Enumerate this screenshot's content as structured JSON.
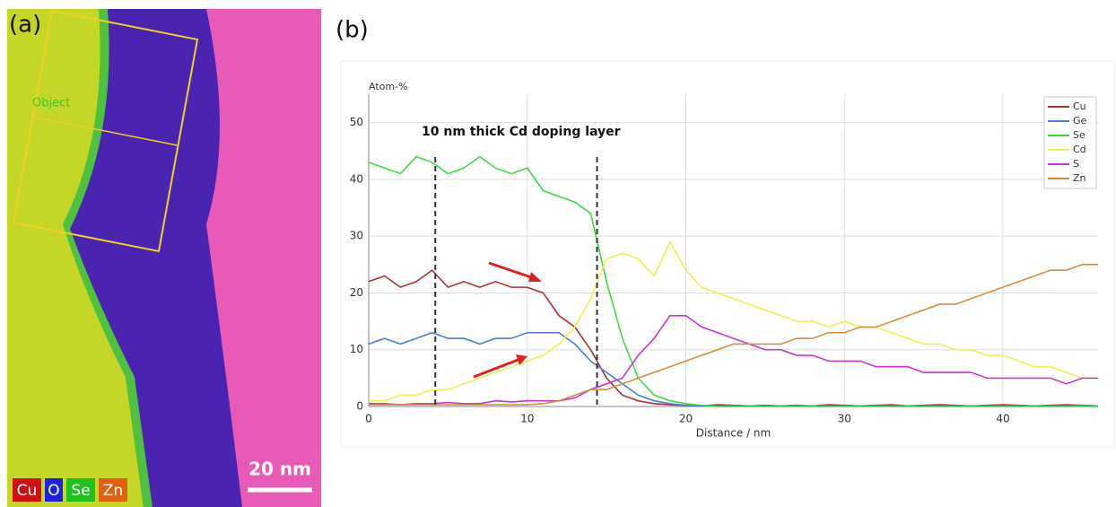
{
  "panel_a": {
    "label": "(a)",
    "object_label": "Object",
    "legend": [
      {
        "name": "Cu",
        "color": "#d01010"
      },
      {
        "name": "O",
        "color": "#2020e0"
      },
      {
        "name": "Se",
        "color": "#20c020"
      },
      {
        "name": "Zn",
        "color": "#e06010"
      }
    ],
    "scale_bar": "20 nm"
  },
  "panel_b_label": "(b)",
  "chart_data": {
    "type": "line",
    "ylabel": "Atom-%",
    "xlabel": "Distance / nm",
    "annotation": "10 nm thick Cd doping layer",
    "vlines": [
      4.2,
      14.4
    ],
    "xlim": [
      0,
      46
    ],
    "xticks": [
      0,
      10,
      20,
      30,
      40
    ],
    "ylim": [
      0,
      55
    ],
    "yticks": [
      0,
      10,
      20,
      30,
      40,
      50
    ],
    "grid": true,
    "legend": "top-right",
    "x": [
      0,
      1,
      2,
      3,
      4,
      5,
      6,
      7,
      8,
      9,
      10,
      11,
      12,
      13,
      14,
      15,
      16,
      17,
      18,
      19,
      20,
      21,
      22,
      23,
      24,
      25,
      26,
      27,
      28,
      29,
      30,
      31,
      32,
      33,
      34,
      35,
      36,
      37,
      38,
      39,
      40,
      41,
      42,
      43,
      44,
      45,
      46
    ],
    "series": [
      {
        "name": "Cu",
        "color": "#b03030",
        "values": [
          22,
          23,
          21,
          22,
          24,
          21,
          22,
          21,
          22,
          21,
          21,
          20,
          16,
          14,
          10,
          5,
          2,
          1,
          0.5,
          0.3,
          0.2,
          0.1,
          0.3,
          0.2,
          0.1,
          0.2,
          0.1,
          0.2,
          0.1,
          0.3,
          0.2,
          0.1,
          0.2,
          0.3,
          0.1,
          0.2,
          0.3,
          0.2,
          0.1,
          0.2,
          0.3,
          0.2,
          0.1,
          0.2,
          0.3,
          0.2,
          0.1
        ]
      },
      {
        "name": "Ge",
        "color": "#4a7fd4",
        "values": [
          11,
          12,
          11,
          12,
          13,
          12,
          12,
          11,
          12,
          12,
          13,
          13,
          13,
          11,
          8,
          6,
          4,
          2,
          1,
          0.5,
          0.2,
          0.1,
          0.1,
          0.1,
          0.1,
          0.1,
          0.1,
          0.1,
          0.1,
          0.1,
          0.1,
          0.1,
          0.1,
          0.1,
          0.1,
          0.1,
          0.1,
          0.1,
          0.1,
          0.1,
          0.1,
          0.1,
          0.1,
          0.1,
          0.1,
          0.2,
          0.1
        ]
      },
      {
        "name": "Se",
        "color": "#3ddc3d",
        "values": [
          43,
          42,
          41,
          44,
          43,
          41,
          42,
          44,
          42,
          41,
          42,
          38,
          37,
          36,
          34,
          22,
          12,
          5,
          2,
          1,
          0.5,
          0.2,
          0,
          0,
          0,
          0,
          0,
          0,
          0,
          0,
          0,
          0,
          0,
          0,
          0,
          0,
          0,
          0,
          0,
          0,
          0,
          0,
          0,
          0,
          0,
          0,
          0
        ]
      },
      {
        "name": "Cd",
        "color": "#f0f050",
        "values": [
          1,
          1,
          2,
          2,
          3,
          3,
          4,
          5,
          6,
          7,
          8,
          9,
          11,
          14,
          19,
          26,
          27,
          26,
          23,
          29,
          24,
          21,
          20,
          19,
          18,
          17,
          16,
          15,
          15,
          14,
          15,
          14,
          14,
          13,
          12,
          11,
          11,
          10,
          10,
          9,
          9,
          8,
          7,
          7,
          6,
          5,
          5
        ]
      },
      {
        "name": "S",
        "color": "#cc33cc",
        "values": [
          0.5,
          0.5,
          0.3,
          0.5,
          0.5,
          0.7,
          0.5,
          0.5,
          1,
          0.8,
          1,
          1,
          1,
          1.5,
          3,
          4,
          5,
          9,
          12,
          16,
          16,
          14,
          13,
          12,
          11,
          10,
          10,
          9,
          9,
          8,
          8,
          8,
          7,
          7,
          7,
          6,
          6,
          6,
          6,
          5,
          5,
          5,
          5,
          5,
          4,
          5,
          5
        ]
      },
      {
        "name": "Zn",
        "color": "#d98c40",
        "values": [
          0.3,
          0.3,
          0.3,
          0.3,
          0.3,
          0.3,
          0.3,
          0.3,
          0.3,
          0.3,
          0.3,
          0.5,
          1,
          2,
          3,
          3,
          4,
          5,
          6,
          7,
          8,
          9,
          10,
          11,
          11,
          11,
          11,
          12,
          12,
          13,
          13,
          14,
          14,
          15,
          16,
          17,
          18,
          18,
          19,
          20,
          21,
          22,
          23,
          24,
          24,
          25,
          25
        ]
      }
    ]
  }
}
